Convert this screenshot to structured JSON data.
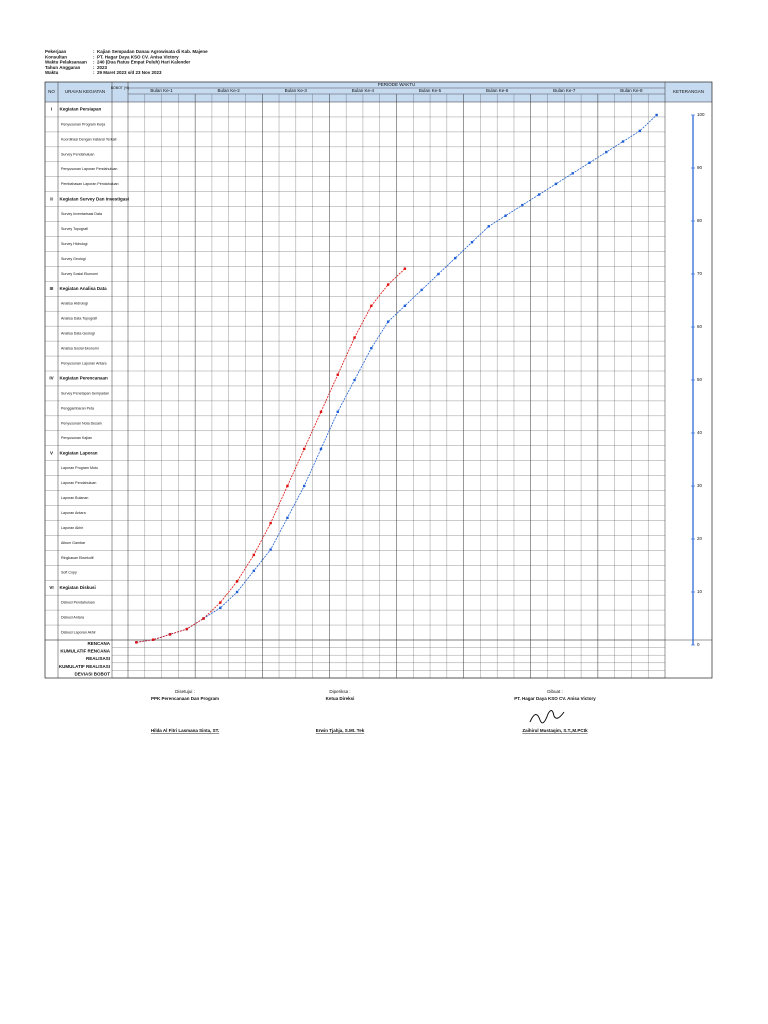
{
  "header": {
    "sep": ":",
    "fields": [
      {
        "label": "Pekerjaan",
        "value": "Kajian Sempadan Danau Agrowisata di Kab. Majene"
      },
      {
        "label": "Konsultan",
        "value": "PT. Hagar Daya KSO CV. Anisa Victory"
      },
      {
        "label": "Waktu Pelaksanaan",
        "value": "240 (Dua Ratus Empat Puluh) Hari Kalender"
      },
      {
        "label": "Tahun Anggaran",
        "value": "2023"
      },
      {
        "label": "Waktu",
        "value": "29 Maret 2023 s/d 23 Nov 2023"
      }
    ]
  },
  "table": {
    "no_header": "NO",
    "label_header": "URAIAN KEGIATAN",
    "weight_header": "BOBOT (%)",
    "period_header": "PERIODE WAKTU",
    "remarks_header": "KETERANGAN",
    "months": [
      "Bulan Ke-1",
      "Bulan Ke-2",
      "Bulan Ke-3",
      "Bulan Ke-4",
      "Bulan Ke-5",
      "Bulan Ke-6",
      "Bulan Ke-7",
      "Bulan Ke-8"
    ],
    "sections": [
      {
        "no": "I",
        "title": "Kegiatan Persiapan",
        "items": [
          "Penyusunan Program Kerja",
          "Koordinasi Dengan Instansi Terkait",
          "Survey Pendahuluan",
          "Penyusunan Laporan Pendahuluan",
          "Pembahasan Laporan Pendahuluan"
        ]
      },
      {
        "no": "II",
        "title": "Kegiatan Survey Dan Investigasi",
        "items": [
          "Survey Inventarisasi Data",
          "Survey Topografi",
          "Survey Hidrologi",
          "Survey Geologi",
          "Survey Sosial Ekonomi"
        ]
      },
      {
        "no": "III",
        "title": "Kegiatan Analisa Data",
        "items": [
          "Analisa Hidrologi",
          "Analisa Data Topografi",
          "Analisa Data Geologi",
          "Analisa Sosial Ekonomi",
          "Penyusunan Laporan Antara"
        ]
      },
      {
        "no": "IV",
        "title": "Kegiatan Perencanaan",
        "items": [
          "Survey Penetapan Sempadan",
          "Penggambaran Peta",
          "Penyusunan Nota Desain",
          "Penyusunan Kajian"
        ]
      },
      {
        "no": "V",
        "title": "Kegiatan Laporan",
        "items": [
          "Laporan Program Mutu",
          "Laporan Pendahuluan",
          "Laporan Bulanan",
          "Laporan Antara",
          "Laporan Akhir",
          "Album Gambar",
          "Ringkasan Eksekutif",
          "Soft Copy"
        ]
      },
      {
        "no": "VI",
        "title": "Kegiatan Diskusi",
        "items": [
          "Diskusi Pendahuluan",
          "Diskusi Antara",
          "Diskusi Laporan Akhir"
        ]
      }
    ],
    "summary_rows": [
      "RENCANA",
      "KUMULATIF RENCANA",
      "REALISASI",
      "KUMULATIF REALISASI",
      "DEVIASI BOBOT"
    ]
  },
  "s_curve": {
    "ylim": [
      0,
      100
    ],
    "yticks": [
      0,
      10,
      20,
      30,
      40,
      50,
      60,
      70,
      80,
      90,
      100
    ],
    "plan": {
      "color": "#1f5fd6",
      "values": [
        0.5,
        1,
        2,
        3,
        5,
        7,
        10,
        14,
        18,
        24,
        30,
        37,
        44,
        50,
        56,
        61,
        64,
        67,
        70,
        73,
        76,
        79,
        81,
        83,
        85,
        87,
        89,
        91,
        93,
        95,
        97,
        100
      ]
    },
    "actual": {
      "color": "#e01010",
      "values": [
        0.5,
        1,
        2,
        3,
        5,
        8,
        12,
        17,
        23,
        30,
        37,
        44,
        51,
        58,
        64,
        68,
        71
      ]
    }
  },
  "signatures": [
    {
      "role": "Disetujui :",
      "title": "PPK Perencanaan Dan Program",
      "name": "Hilda Al Fitri Lasmana Sinta, ST."
    },
    {
      "role": "Diperiksa :",
      "title": "Ketua Direksi",
      "name": "Erwin Tjahja, S.Mt. Tek"
    },
    {
      "role": "Dibuat :",
      "title": "PT. Hagar Daya KSO CV. Anisa Victory",
      "name": "Zaihirul Mustaqim, S.T.,M.PCtk"
    }
  ]
}
